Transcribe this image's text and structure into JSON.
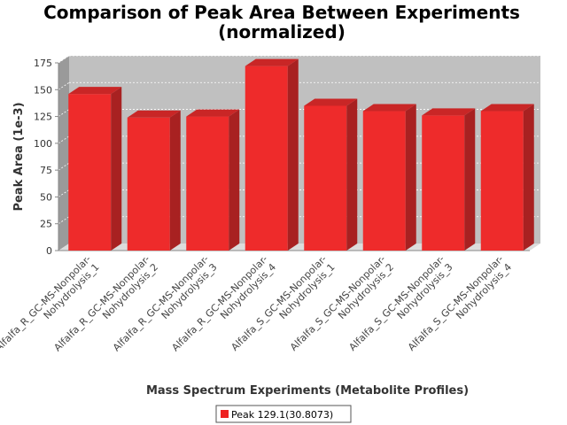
{
  "chart_data": {
    "type": "bar",
    "title_lines": [
      "Comparison of Peak Area Between Experiments",
      "(normalized)"
    ],
    "xlabel": "Mass Spectrum Experiments (Metabolite Profiles)",
    "ylabel": "Peak Area (1e-3)",
    "ylim": [
      0,
      175
    ],
    "yticks": [
      0,
      25,
      50,
      75,
      100,
      125,
      150,
      175
    ],
    "grid": true,
    "legend_position": "bottom",
    "categories": [
      [
        "Alfalfa_R_GC-MS-Nonpolar-",
        "Nohydrolysis_1"
      ],
      [
        "Alfalfa_R_GC-MS-Nonpolar-",
        "Nohydrolysis_2"
      ],
      [
        "Alfalfa_R_GC-MS-Nonpolar-",
        "Nohydrolysis_3"
      ],
      [
        "Alfalfa_R_GC-MS-Nonpolar-",
        "Nohydrolysis_4"
      ],
      [
        "Alfalfa_S_GC-MS-Nonpolar-",
        "Nohydrolysis_1"
      ],
      [
        "Alfalfa_S_GC-MS-Nonpolar-",
        "Nohydrolysis_2"
      ],
      [
        "Alfalfa_S_GC-MS-Nonpolar-",
        "Nohydrolysis_3"
      ],
      [
        "Alfalfa_S_GC-MS-Nonpolar-",
        "Nohydrolysis_4"
      ]
    ],
    "series": [
      {
        "name": "Peak 129.1(30.8073)",
        "color": "#ee2222",
        "values": [
          146,
          124,
          125,
          172,
          135,
          130,
          126,
          130
        ]
      }
    ]
  }
}
